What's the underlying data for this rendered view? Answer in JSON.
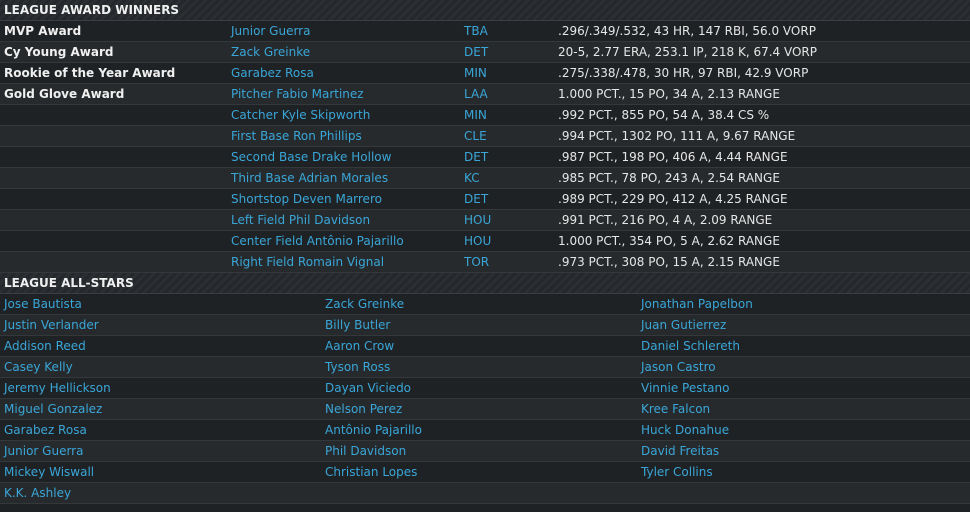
{
  "awards": {
    "title": "LEAGUE AWARD WINNERS",
    "rows": [
      {
        "award": "MVP Award",
        "player": "Junior Guerra",
        "team": "TBA",
        "stats": ".296/.349/.532, 43 HR, 147 RBI, 56.0 VORP"
      },
      {
        "award": "Cy Young Award",
        "player": "Zack Greinke",
        "team": "DET",
        "stats": "20-5, 2.77 ERA, 253.1 IP, 218 K, 67.4 VORP"
      },
      {
        "award": "Rookie of the Year Award",
        "player": "Garabez Rosa",
        "team": "MIN",
        "stats": ".275/.338/.478, 30 HR, 97 RBI, 42.9 VORP"
      },
      {
        "award": "Gold Glove Award",
        "player": "Pitcher Fabio Martinez",
        "team": "LAA",
        "stats": "1.000 PCT., 15 PO, 34 A, 2.13 RANGE"
      },
      {
        "award": "",
        "player": "Catcher Kyle Skipworth",
        "team": "MIN",
        "stats": ".992 PCT., 855 PO, 54 A, 38.4 CS %"
      },
      {
        "award": "",
        "player": "First Base Ron Phillips",
        "team": "CLE",
        "stats": ".994 PCT., 1302 PO, 111 A, 9.67 RANGE"
      },
      {
        "award": "",
        "player": "Second Base Drake Hollow",
        "team": "DET",
        "stats": ".987 PCT., 198 PO, 406 A, 4.44 RANGE"
      },
      {
        "award": "",
        "player": "Third Base Adrian Morales",
        "team": "KC",
        "stats": ".985 PCT., 78 PO, 243 A, 2.54 RANGE"
      },
      {
        "award": "",
        "player": "Shortstop Deven Marrero",
        "team": "DET",
        "stats": ".989 PCT., 229 PO, 412 A, 4.25 RANGE"
      },
      {
        "award": "",
        "player": "Left Field Phil Davidson",
        "team": "HOU",
        "stats": ".991 PCT., 216 PO, 4 A, 2.09 RANGE"
      },
      {
        "award": "",
        "player": "Center Field Antônio Pajarillo",
        "team": "HOU",
        "stats": "1.000 PCT., 354 PO, 5 A, 2.62 RANGE"
      },
      {
        "award": "",
        "player": "Right Field Romain Vignal",
        "team": "TOR",
        "stats": ".973 PCT., 308 PO, 15 A, 2.15 RANGE"
      }
    ]
  },
  "allstars": {
    "title": "LEAGUE ALL-STARS",
    "rows": [
      [
        "Jose Bautista",
        "Zack Greinke",
        "Jonathan Papelbon"
      ],
      [
        "Justin Verlander",
        "Billy Butler",
        "Juan Gutierrez"
      ],
      [
        "Addison Reed",
        "Aaron Crow",
        "Daniel Schlereth"
      ],
      [
        "Casey Kelly",
        "Tyson Ross",
        "Jason Castro"
      ],
      [
        "Jeremy Hellickson",
        "Dayan Viciedo",
        "Vinnie Pestano"
      ],
      [
        "Miguel Gonzalez",
        "Nelson Perez",
        "Kree Falcon"
      ],
      [
        "Garabez Rosa",
        "Antônio Pajarillo",
        "Huck Donahue"
      ],
      [
        "Junior Guerra",
        "Phil Davidson",
        "David Freitas"
      ],
      [
        "Mickey Wiswall",
        "Christian Lopes",
        "Tyler Collins"
      ],
      [
        "K.K. Ashley",
        "",
        ""
      ]
    ]
  }
}
